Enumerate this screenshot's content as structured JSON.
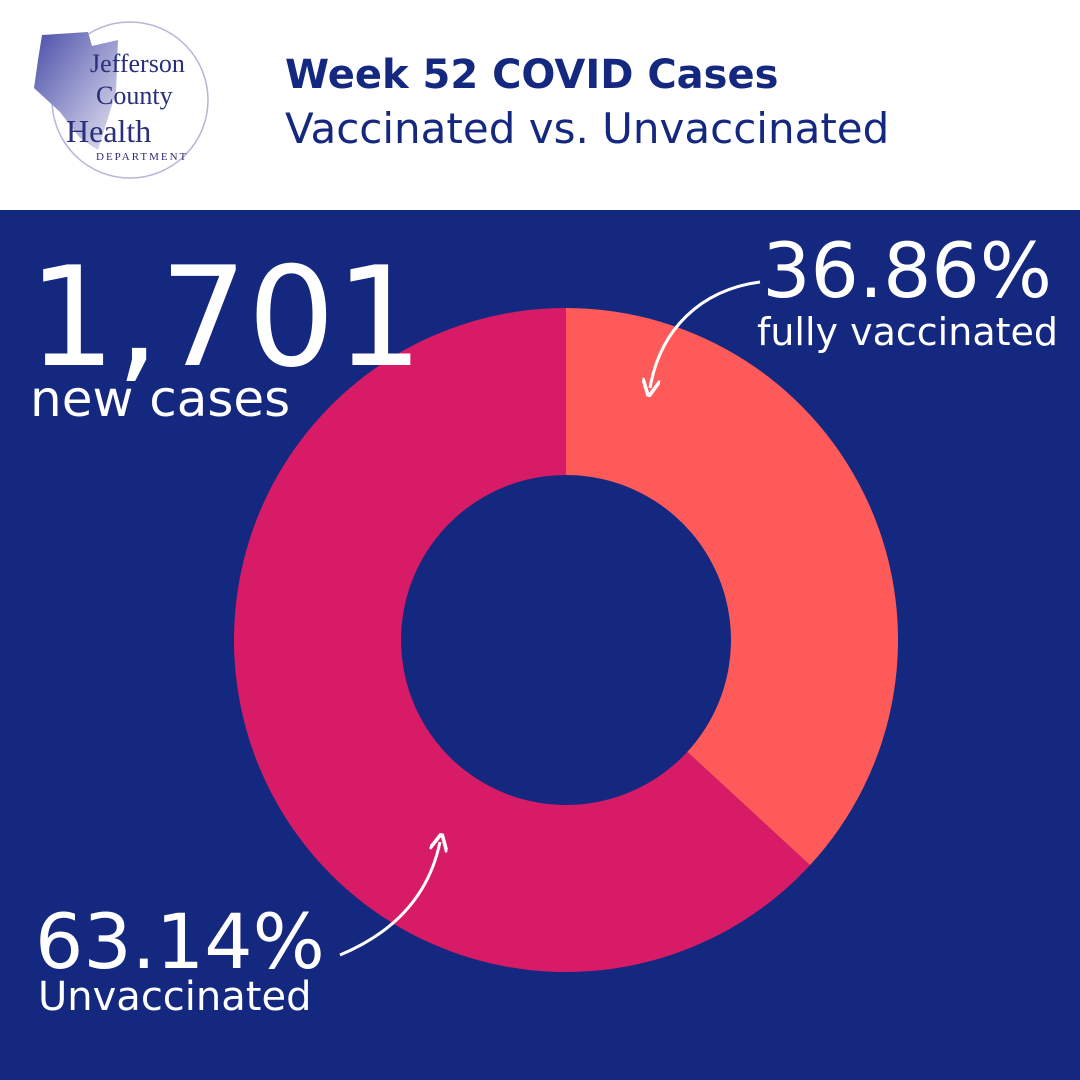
{
  "logo": {
    "lines": [
      "Jefferson",
      "County",
      "Health"
    ],
    "subtitle": "DEPARTMENT"
  },
  "chart_data": {
    "type": "pie",
    "title": "Week 52 COVID Cases",
    "subtitle": "Vaccinated vs. Unvaccinated",
    "total": {
      "value": 1701,
      "label": "1,701"
    },
    "total_label": "new cases",
    "categories": [
      "fully vaccinated",
      "Unvaccinated"
    ],
    "values": [
      36.86,
      63.14
    ],
    "value_labels": [
      "36.86%",
      "63.14%"
    ],
    "colors": [
      "#ff5a5a",
      "#d81b67"
    ],
    "hole": true
  }
}
